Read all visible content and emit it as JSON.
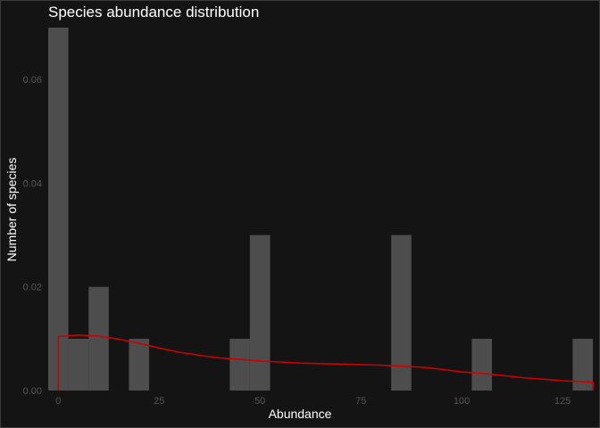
{
  "chart_data": {
    "type": "bar",
    "title": "Species abundance distribution",
    "xlabel": "Abundance",
    "ylabel": "Number of species",
    "xlim": [
      -2.5,
      132.5
    ],
    "ylim": [
      0,
      0.07
    ],
    "x_ticks": [
      0,
      25,
      50,
      75,
      100,
      125
    ],
    "x_tick_labels": [
      "0",
      "25",
      "50",
      "75",
      "100",
      "125"
    ],
    "y_ticks": [
      0.0,
      0.02,
      0.04,
      0.06
    ],
    "y_tick_labels": [
      "0.00",
      "0.02",
      "0.04",
      "0.06"
    ],
    "bin_width": 5,
    "bins": [
      {
        "x": 0,
        "value": 0.07
      },
      {
        "x": 5,
        "value": 0.01
      },
      {
        "x": 10,
        "value": 0.02
      },
      {
        "x": 20,
        "value": 0.01
      },
      {
        "x": 45,
        "value": 0.01
      },
      {
        "x": 50,
        "value": 0.03
      },
      {
        "x": 85,
        "value": 0.03
      },
      {
        "x": 105,
        "value": 0.01
      },
      {
        "x": 130,
        "value": 0.01
      }
    ],
    "density_line": {
      "color": "#cc0000",
      "x": [
        0,
        5,
        10,
        15,
        20,
        25,
        30,
        35,
        40,
        45,
        50,
        55,
        60,
        65,
        70,
        75,
        80,
        85,
        90,
        95,
        100,
        105,
        110,
        115,
        120,
        125,
        130,
        132.5
      ],
      "y": [
        0.0104,
        0.0107,
        0.0105,
        0.0099,
        0.0091,
        0.0082,
        0.0074,
        0.0068,
        0.0063,
        0.006,
        0.0057,
        0.0055,
        0.0053,
        0.0052,
        0.0051,
        0.005,
        0.0049,
        0.0047,
        0.0045,
        0.0041,
        0.0036,
        0.0033,
        0.0029,
        0.0025,
        0.0022,
        0.0019,
        0.0017,
        0.0016
      ]
    },
    "bar_color": "#4d4d4d",
    "grid": false,
    "legend": "none"
  }
}
